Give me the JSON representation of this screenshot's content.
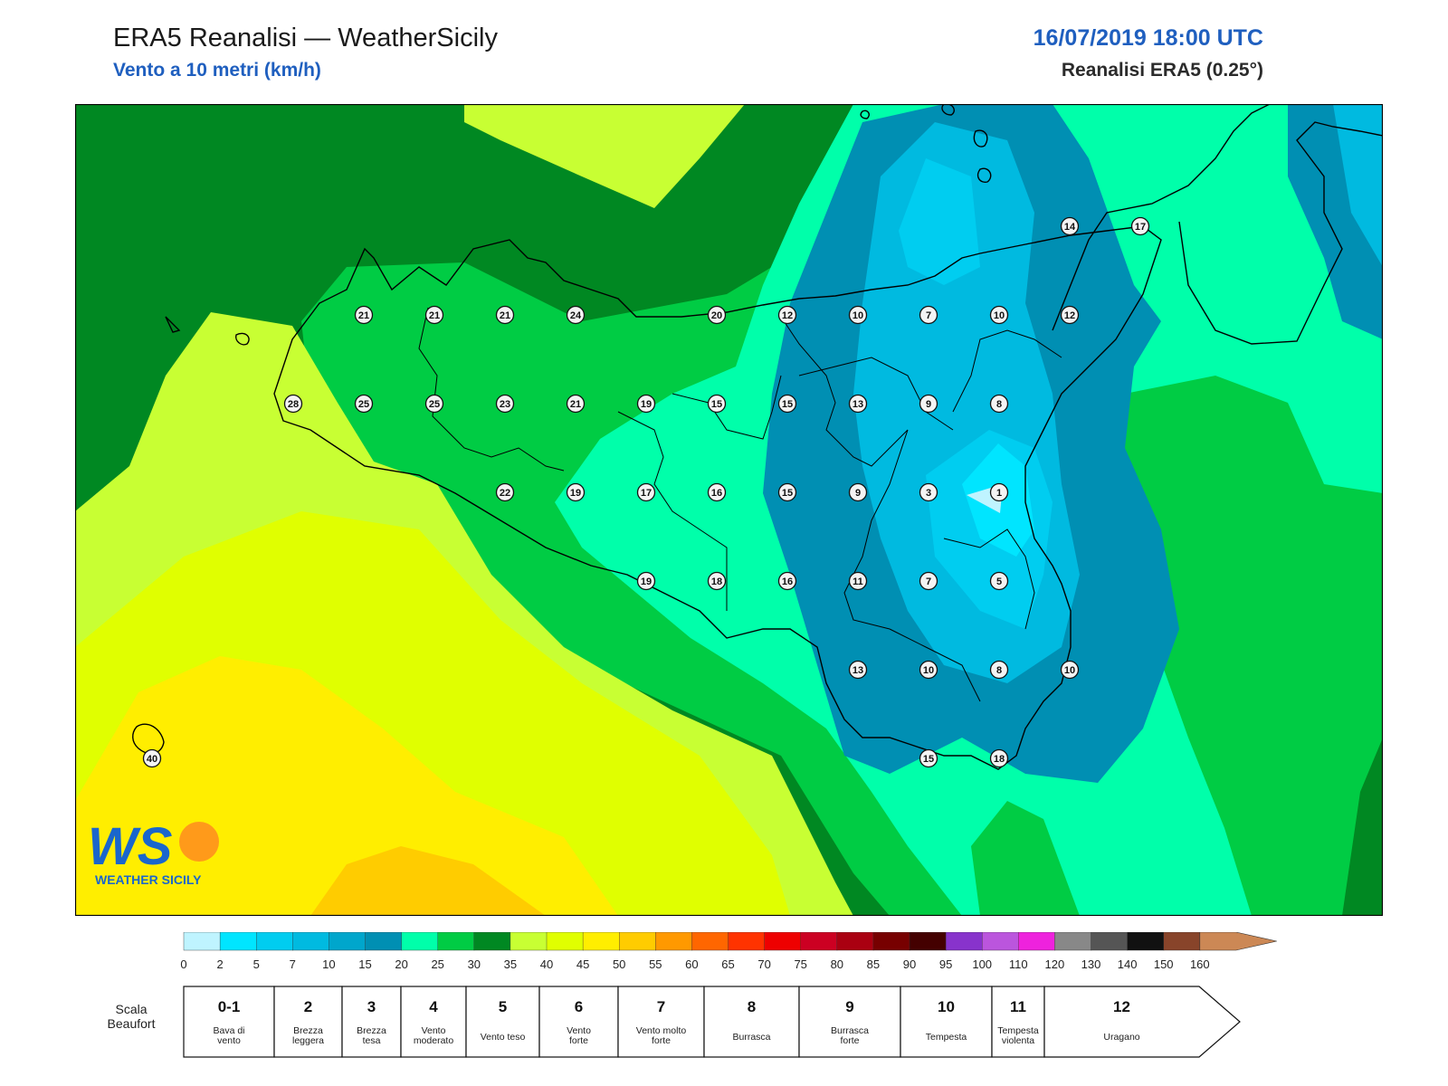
{
  "header": {
    "title": "ERA5 Reanalisi — WeatherSicily",
    "subtitle": "Vento a 10 metri (km/h)",
    "datetime": "16/07/2019 18:00 UTC",
    "model": "Reanalisi ERA5 (0.25°)"
  },
  "logo": {
    "mark": "WS",
    "name": "WEATHER SICILY"
  },
  "stations": [
    {
      "v": "14",
      "col": 14,
      "row": 0
    },
    {
      "v": "17",
      "col": 15,
      "row": 0
    },
    {
      "v": "21",
      "col": 4,
      "row": 1
    },
    {
      "v": "21",
      "col": 5,
      "row": 1
    },
    {
      "v": "21",
      "col": 6,
      "row": 1
    },
    {
      "v": "24",
      "col": 7,
      "row": 1
    },
    {
      "v": "20",
      "col": 9,
      "row": 1
    },
    {
      "v": "12",
      "col": 10,
      "row": 1
    },
    {
      "v": "10",
      "col": 11,
      "row": 1
    },
    {
      "v": "7",
      "col": 12,
      "row": 1
    },
    {
      "v": "10",
      "col": 13,
      "row": 1
    },
    {
      "v": "12",
      "col": 14,
      "row": 1
    },
    {
      "v": "28",
      "col": 3,
      "row": 2
    },
    {
      "v": "25",
      "col": 4,
      "row": 2
    },
    {
      "v": "25",
      "col": 5,
      "row": 2
    },
    {
      "v": "23",
      "col": 6,
      "row": 2
    },
    {
      "v": "21",
      "col": 7,
      "row": 2
    },
    {
      "v": "19",
      "col": 8,
      "row": 2
    },
    {
      "v": "15",
      "col": 9,
      "row": 2
    },
    {
      "v": "15",
      "col": 10,
      "row": 2
    },
    {
      "v": "13",
      "col": 11,
      "row": 2
    },
    {
      "v": "9",
      "col": 12,
      "row": 2
    },
    {
      "v": "8",
      "col": 13,
      "row": 2
    },
    {
      "v": "22",
      "col": 6,
      "row": 3
    },
    {
      "v": "19",
      "col": 7,
      "row": 3
    },
    {
      "v": "17",
      "col": 8,
      "row": 3
    },
    {
      "v": "16",
      "col": 9,
      "row": 3
    },
    {
      "v": "15",
      "col": 10,
      "row": 3
    },
    {
      "v": "9",
      "col": 11,
      "row": 3
    },
    {
      "v": "3",
      "col": 12,
      "row": 3
    },
    {
      "v": "1",
      "col": 13,
      "row": 3
    },
    {
      "v": "19",
      "col": 8,
      "row": 4
    },
    {
      "v": "18",
      "col": 9,
      "row": 4
    },
    {
      "v": "16",
      "col": 10,
      "row": 4
    },
    {
      "v": "11",
      "col": 11,
      "row": 4
    },
    {
      "v": "7",
      "col": 12,
      "row": 4
    },
    {
      "v": "5",
      "col": 13,
      "row": 4
    },
    {
      "v": "13",
      "col": 11,
      "row": 5
    },
    {
      "v": "10",
      "col": 12,
      "row": 5
    },
    {
      "v": "8",
      "col": 13,
      "row": 5
    },
    {
      "v": "10",
      "col": 14,
      "row": 5
    },
    {
      "v": "40",
      "col": 1,
      "row": 6
    },
    {
      "v": "15",
      "col": 12,
      "row": 6
    },
    {
      "v": "18",
      "col": 13,
      "row": 6
    }
  ],
  "colorbar": {
    "ticks": [
      "0",
      "2",
      "5",
      "7",
      "10",
      "15",
      "20",
      "25",
      "30",
      "35",
      "40",
      "45",
      "50",
      "55",
      "60",
      "65",
      "70",
      "75",
      "80",
      "85",
      "90",
      "95",
      "100",
      "110",
      "120",
      "130",
      "140",
      "150",
      "160"
    ],
    "colors": [
      "#bff4ff",
      "#00e5ff",
      "#00cdf0",
      "#00bae0",
      "#00a6cc",
      "#008fb3",
      "#00ffaa",
      "#00cc44",
      "#008822",
      "#c8ff33",
      "#e0ff00",
      "#ffee00",
      "#ffcc00",
      "#ff9900",
      "#ff6600",
      "#ff3300",
      "#ee0000",
      "#cc0022",
      "#aa0011",
      "#770000",
      "#440000",
      "#8833cc",
      "#bb55dd",
      "#ee22dd",
      "#888888",
      "#555555",
      "#111111",
      "#88442a",
      "#cc8855"
    ]
  },
  "beaufort": {
    "label": "Scala Beaufort",
    "classes": [
      {
        "num": "0-1",
        "name": "Bava di vento"
      },
      {
        "num": "2",
        "name": "Brezza leggera"
      },
      {
        "num": "3",
        "name": "Brezza tesa"
      },
      {
        "num": "4",
        "name": "Vento moderato"
      },
      {
        "num": "5",
        "name": "Vento teso"
      },
      {
        "num": "6",
        "name": "Vento forte"
      },
      {
        "num": "7",
        "name": "Vento molto forte"
      },
      {
        "num": "8",
        "name": "Burrasca"
      },
      {
        "num": "9",
        "name": "Burrasca forte"
      },
      {
        "num": "10",
        "name": "Tempesta"
      },
      {
        "num": "11",
        "name": "Tempesta violenta"
      },
      {
        "num": "12",
        "name": "Uragano"
      }
    ]
  }
}
